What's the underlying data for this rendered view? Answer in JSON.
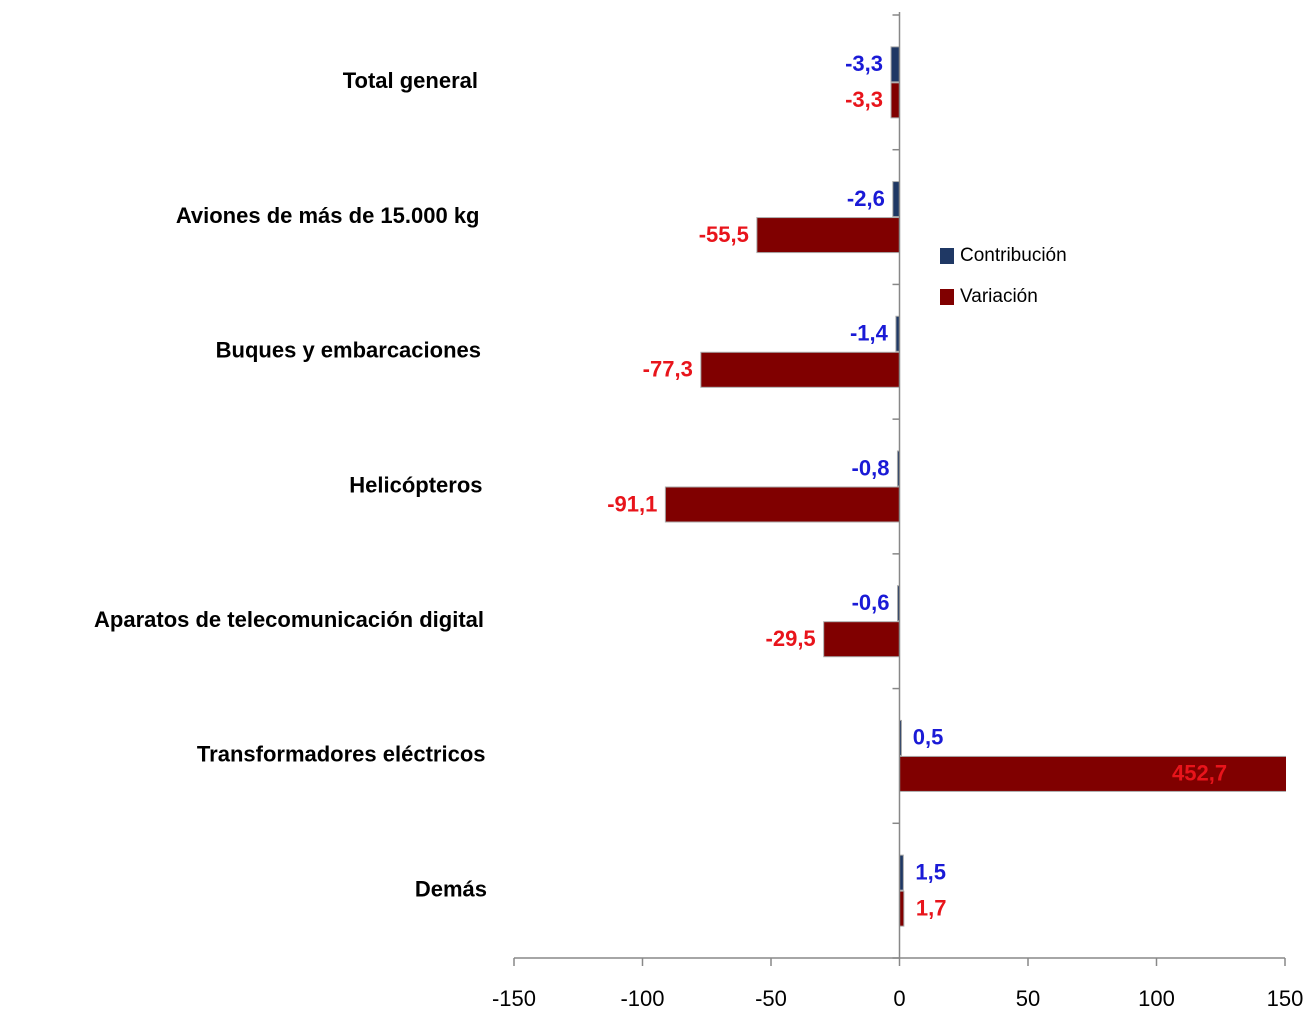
{
  "chart_data": {
    "type": "bar",
    "orientation": "horizontal",
    "categories": [
      "Total general",
      "Aviones de más de 15.000 kg",
      "Buques y embarcaciones",
      "Helicópteros",
      "Aparatos de telecomunicación digital",
      "Transformadores eléctricos",
      "Demás"
    ],
    "series": [
      {
        "name": "Contribución",
        "color": "#1f3864",
        "label_color": "#1a1ad6",
        "values": [
          -3.3,
          -2.6,
          -1.4,
          -0.8,
          -0.6,
          0.5,
          1.5
        ],
        "value_labels": [
          "-3,3",
          "-2,6",
          "-1,4",
          "-0,8",
          "-0,6",
          "0,5",
          "1,5"
        ]
      },
      {
        "name": "Variación",
        "color": "#800000",
        "label_color": "#e8141b",
        "values": [
          -3.3,
          -55.5,
          -77.3,
          -91.1,
          -29.5,
          452.7,
          1.7
        ],
        "value_labels": [
          "-3,3",
          "-55,5",
          "-77,3",
          "-91,1",
          "-29,5",
          "452,7",
          "1,7"
        ]
      }
    ],
    "xlim": [
      -150,
      150
    ],
    "xticks": [
      -150,
      -100,
      -50,
      0,
      50,
      100,
      150
    ],
    "legend": "right"
  }
}
